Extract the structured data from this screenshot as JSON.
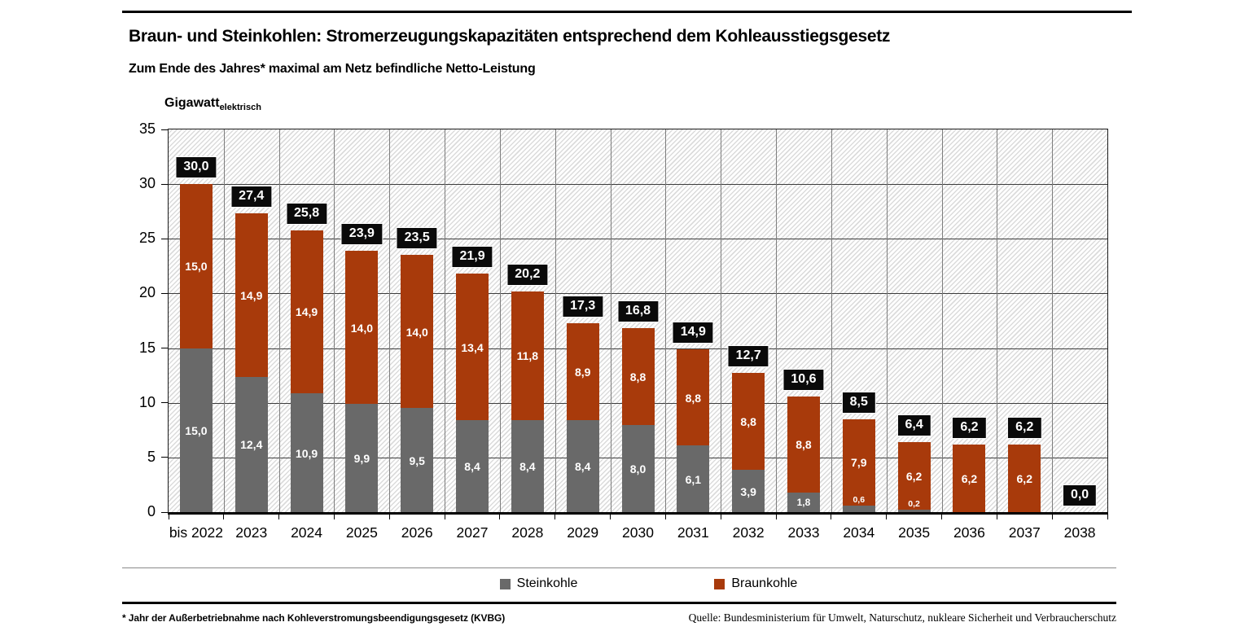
{
  "page": {
    "title": "Braun- und Steinkohlen: Stromerzeugungskapazitäten entsprechend dem Kohleausstiegsgesetz",
    "subtitle": "Zum Ende des Jahres* maximal am Netz befindliche Netto-Leistung",
    "footnote": "* Jahr der Außerbetriebnahme nach Kohleverstromungsbeendigungsgesetz (KVBG)",
    "source": "Quelle:  Bundesministerium für Umwelt, Naturschutz, nukleare Sicherheit und Verbraucherschutz"
  },
  "axis": {
    "unit_main": "Gigawatt",
    "unit_sub": "elektrisch",
    "y_ticks": [
      0,
      5,
      10,
      15,
      20,
      25,
      30,
      35
    ],
    "y_max": 35
  },
  "legend": [
    {
      "label": "Steinkohle",
      "color": "#696969"
    },
    {
      "label": "Braunkohle",
      "color": "#A83A0B"
    }
  ],
  "chart_data": {
    "type": "bar",
    "stacked": true,
    "title": "Braun- und Steinkohlen: Stromerzeugungskapazitäten entsprechend dem Kohleausstiegsgesetz",
    "subtitle": "Zum Ende des Jahres* maximal am Netz befindliche Netto-Leistung",
    "ylabel": "Gigawatt elektrisch",
    "xlabel": "",
    "ylim": [
      0,
      35
    ],
    "grid": true,
    "legend_position": "bottom",
    "background_pattern": "diagonal-hatch",
    "categories": [
      "bis 2022",
      "2023",
      "2024",
      "2025",
      "2026",
      "2027",
      "2028",
      "2029",
      "2030",
      "2031",
      "2032",
      "2033",
      "2034",
      "2035",
      "2036",
      "2037",
      "2038"
    ],
    "series": [
      {
        "name": "Steinkohle",
        "color": "#696969",
        "values": [
          15.0,
          12.4,
          10.9,
          9.9,
          9.5,
          8.4,
          8.4,
          8.4,
          8.0,
          6.1,
          3.9,
          1.8,
          0.6,
          0.2,
          0,
          0,
          0
        ],
        "labels": [
          "15,0",
          "12,4",
          "10,9",
          "9,9",
          "9,5",
          "8,4",
          "8,4",
          "8,4",
          "8,0",
          "6,1",
          "3,9",
          "1,8",
          "0,6",
          "0,2",
          "",
          "",
          ""
        ]
      },
      {
        "name": "Braunkohle",
        "color": "#A83A0B",
        "values": [
          15.0,
          14.9,
          14.9,
          14.0,
          14.0,
          13.4,
          11.8,
          8.9,
          8.8,
          8.8,
          8.8,
          8.8,
          7.9,
          6.2,
          6.2,
          6.2,
          0
        ],
        "labels": [
          "15,0",
          "14,9",
          "14,9",
          "14,0",
          "14,0",
          "13,4",
          "11,8",
          "8,9",
          "8,8",
          "8,8",
          "8,8",
          "8,8",
          "7,9",
          "6,2",
          "6,2",
          "6,2",
          ""
        ]
      }
    ],
    "totals": [
      30.0,
      27.4,
      25.8,
      23.9,
      23.5,
      21.9,
      20.2,
      17.3,
      16.8,
      14.9,
      12.7,
      10.6,
      8.5,
      6.4,
      6.2,
      6.2,
      0.0
    ],
    "total_labels": [
      "30,0",
      "27,4",
      "25,8",
      "23,9",
      "23,5",
      "21,9",
      "20,2",
      "17,3",
      "16,8",
      "14,9",
      "12,7",
      "10,6",
      "8,5",
      "6,4",
      "6,2",
      "6,2",
      "0,0"
    ]
  }
}
